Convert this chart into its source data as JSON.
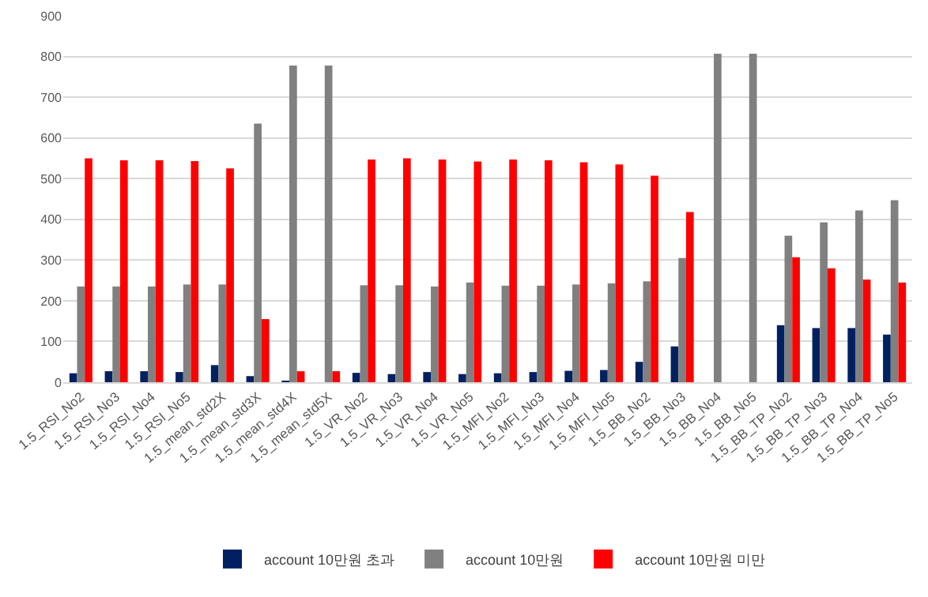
{
  "chart_data": {
    "type": "bar",
    "categories": [
      "1.5_RSI_No2",
      "1.5_RSI_No3",
      "1.5_RSI_No4",
      "1.5_RSI_No5",
      "1.5_mean_std2X",
      "1.5_mean_std3X",
      "1.5_mean_std4X",
      "1.5_mean_std5X",
      "1.5_VR_No2",
      "1.5_VR_No3",
      "1.5_VR_No4",
      "1.5_VR_No5",
      "1.5_MFI_No2",
      "1.5_MFI_No3",
      "1.5_MFI_No4",
      "1.5_MFI_No5",
      "1.5_BB_No2",
      "1.5_BB_No3",
      "1.5_BB_No4",
      "1.5_BB_No5",
      "1.5_BB_TP_No2",
      "1.5_BB_TP_No3",
      "1.5_BB_TP_No4",
      "1.5_BB_TP_No5"
    ],
    "series": [
      {
        "name": "account 10만원 초과",
        "color": "#002060",
        "values": [
          22,
          27,
          27,
          25,
          42,
          15,
          3,
          0,
          23,
          20,
          25,
          20,
          22,
          25,
          28,
          30,
          50,
          88,
          0,
          0,
          140,
          133,
          133,
          117
        ]
      },
      {
        "name": "account 10만원",
        "color": "#808080",
        "values": [
          235,
          235,
          235,
          240,
          240,
          635,
          778,
          778,
          238,
          238,
          235,
          245,
          237,
          237,
          240,
          243,
          248,
          305,
          807,
          807,
          360,
          393,
          422,
          447
        ]
      },
      {
        "name": "account 10만원 미만",
        "color": "#ff0000",
        "values": [
          550,
          545,
          545,
          543,
          525,
          155,
          27,
          27,
          547,
          550,
          547,
          542,
          547,
          545,
          540,
          535,
          507,
          418,
          0,
          0,
          307,
          280,
          252,
          245
        ]
      }
    ],
    "ylim": [
      0,
      900
    ],
    "yticks": [
      0,
      100,
      200,
      300,
      400,
      500,
      600,
      700,
      800,
      900
    ],
    "grid": "y",
    "legend": "bottom"
  }
}
